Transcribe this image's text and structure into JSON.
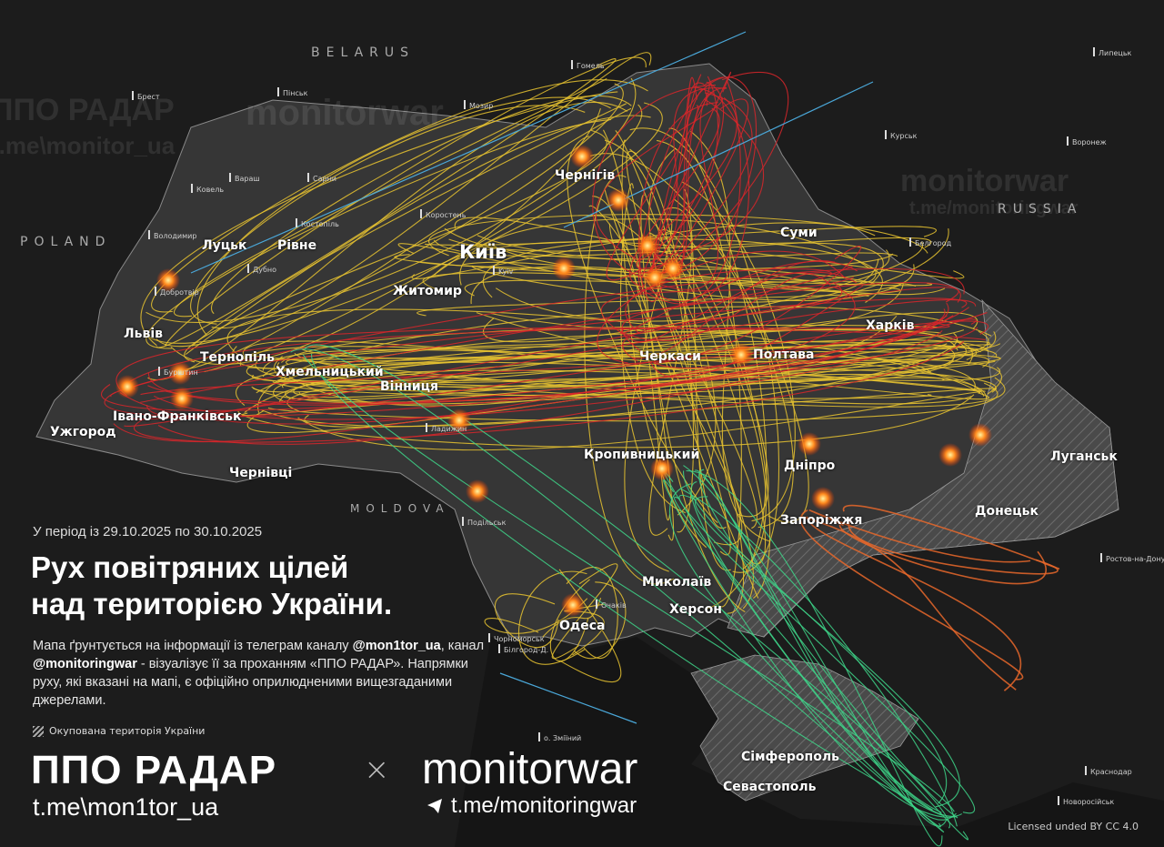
{
  "header": {
    "period": "У період із 29.10.2025 по 30.10.2025",
    "title_line1": "Рух повітряних цілей",
    "title_line2": "над територією України."
  },
  "description": {
    "part1": "Мапа ґрунтується на інформації із телеграм каналу ",
    "handle1": "@mon1tor_ua",
    "part2": ", канал ",
    "handle2": "@monitoringwar",
    "part3": " - візуалізує її за проханням «ППО РАДАР». Напрямки руху, які вказані на мапі, є офіційно оприлюдненими вищезгаданими джерелами."
  },
  "legend": {
    "occupied_label": "Окупована територія України",
    "occupied_icon": "hatch-pattern"
  },
  "branding": {
    "brand1": "ППО РАДАР",
    "separator": "×",
    "brand2": "monitorwar",
    "link1": "t.me\\mon1tor_ua",
    "link2": "t.me/monitoringwar",
    "link2_icon": "telegram-icon",
    "license": "Licensed unded BY CC 4.0"
  },
  "watermarks": [
    "ППО РАДАР",
    "monitorwar",
    "t.me\\monitor_ua",
    "t.me/monitoringwar"
  ],
  "countries": [
    "BELARUS",
    "POLAND",
    "MOLDOVA",
    "RUSSIA"
  ],
  "cities": {
    "major": [
      "Київ",
      "Луцьк",
      "Рівне",
      "Житомир",
      "Львів",
      "Тернопіль",
      "Хмельницький",
      "Вінниця",
      "Івано-Франківськ",
      "Ужгород",
      "Чернівці",
      "Чернігів",
      "Суми",
      "Черкаси",
      "Полтава",
      "Харків",
      "Кропивницький",
      "Дніпро",
      "Донецьк",
      "Луганськ",
      "Запоріжжя",
      "Миколаїв",
      "Херсон",
      "Одеса",
      "Сімферополь",
      "Севастополь"
    ],
    "kyiv_latin": "Kyiv",
    "minor": [
      "Брест",
      "Пінськ",
      "Мозир",
      "Гомель",
      "Липецьк",
      "Курськ",
      "Воронеж",
      "Белгород",
      "Ростов-на-Дону",
      "Краснодар",
      "Новоросійськ",
      "о. Зміїний",
      "Білгород-Д.",
      "Чорноморськ",
      "Очаків",
      "Подільськ",
      "Ковель",
      "Вараш",
      "Сарни",
      "Костопіль",
      "Володимир",
      "Дубно",
      "Коростень",
      "Бурштин",
      "Добротвір",
      "Ладижин"
    ]
  },
  "colors": {
    "background": "#1c1c1c",
    "ukraine_land": "#3a3a3a",
    "occupied": "#4a4a4a",
    "shahed_track": "#e8c330",
    "missile_track": "#d8262a",
    "green_track": "#3ed68a",
    "blue_track": "#4aa7d8",
    "orange_track": "#e8672a",
    "explosion": "#ff8a1e"
  }
}
